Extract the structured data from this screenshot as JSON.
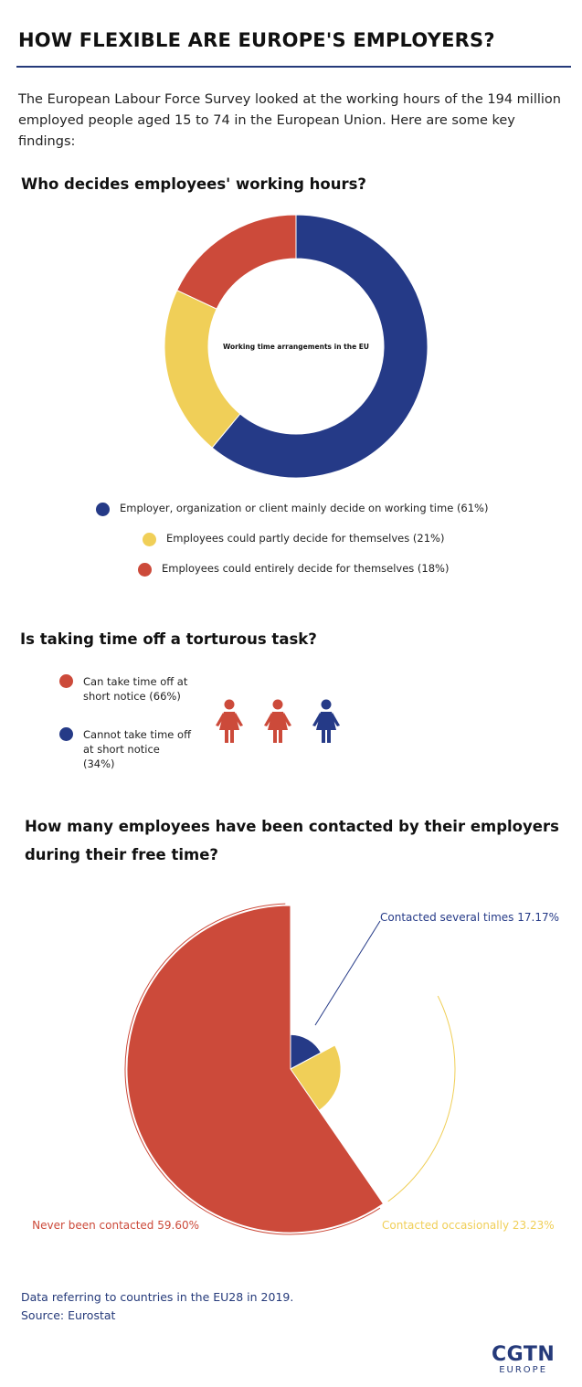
{
  "title": "HOW FLEXIBLE ARE EUROPE'S EMPLOYERS?",
  "intro": "The European Labour Force Survey looked at the working hours of the 194 million employed people aged 15 to 74 in the European Union. Here are some key findings:",
  "sections": {
    "who": "Who decides employees' working hours?",
    "time_off": "Is taking time off a torturous task?",
    "contacted": "How many employees have been contacted by their employers during their free time?"
  },
  "colors": {
    "blue": "#253a87",
    "yellow": "#f0cf58",
    "red": "#cc4a3a",
    "navy_text": "#253a7a"
  },
  "chart_data": [
    {
      "type": "pie",
      "variant": "donut",
      "center_label": "Working time arrangements in the EU",
      "slices": [
        {
          "label": "Employer, organization or client mainly decide on working time (61%)",
          "value": 61,
          "color": "#253a87"
        },
        {
          "label": "Employees could partly decide for themselves (21%)",
          "value": 21,
          "color": "#f0cf58"
        },
        {
          "label": "Employees could entirely decide for themselves (18%)",
          "value": 18,
          "color": "#cc4a3a"
        }
      ],
      "legend_position": "bottom"
    },
    {
      "type": "pictogram",
      "icon": "woman-icon",
      "series": [
        {
          "label": "Can take time off at short notice (66%)",
          "value": 66,
          "icons": 2,
          "color": "#cc4a3a"
        },
        {
          "label": "Cannot take time off at short notice (34%)",
          "value": 34,
          "icons": 1,
          "color": "#253a87"
        }
      ],
      "legend_position": "left"
    },
    {
      "type": "pie",
      "variant": "nightingale",
      "slices": [
        {
          "label": "Contacted several times 17.17%",
          "value": 17.17,
          "color": "#253a87"
        },
        {
          "label": "Contacted occasionally 23.23%",
          "value": 23.23,
          "color": "#f0cf58"
        },
        {
          "label": "Never been contacted 59.60%",
          "value": 59.6,
          "color": "#cc4a3a"
        }
      ]
    }
  ],
  "footer": {
    "note": "Data referring to countries in the EU28 in 2019.",
    "source": "Source: Eurostat"
  },
  "logo": {
    "main": "CGTN",
    "sub": "EUROPE"
  }
}
